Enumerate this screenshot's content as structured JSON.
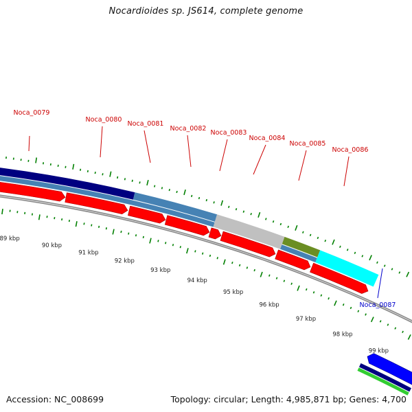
{
  "title": "Nocardioides sp. JS614, complete genome",
  "footer": {
    "accession": "Accession: NC_008699",
    "topology": "Topology: circular; Length: 4,985,871 bp; Genes: 4,700"
  },
  "colors": {
    "forward_gene": "#ff0000",
    "reverse_gene": "#0000ff",
    "tick": "#008000",
    "gene_label_forward": "#cc0000",
    "gene_label_reverse": "#0000cc",
    "backbone": "#888888",
    "navy": "#000080",
    "steelblue": "#4682b4",
    "silver": "#c0c0c0",
    "olive": "#6b8e23",
    "cyan": "#00ffff",
    "green": "#32cd32"
  },
  "kbp_labels": [
    "89 kbp",
    "90 kbp",
    "91 kbp",
    "92 kbp",
    "93 kbp",
    "94 kbp",
    "95 kbp",
    "96 kbp",
    "97 kbp",
    "98 kbp",
    "99 kbp"
  ],
  "gene_labels": [
    {
      "name": "Noca_0079",
      "strand": "forward"
    },
    {
      "name": "Noca_0080",
      "strand": "forward"
    },
    {
      "name": "Noca_0081",
      "strand": "forward"
    },
    {
      "name": "Noca_0082",
      "strand": "forward"
    },
    {
      "name": "Noca_0083",
      "strand": "forward"
    },
    {
      "name": "Noca_0084",
      "strand": "forward"
    },
    {
      "name": "Noca_0085",
      "strand": "forward"
    },
    {
      "name": "Noca_0086",
      "strand": "forward"
    },
    {
      "name": "Noca_0087",
      "strand": "reverse"
    }
  ],
  "icons": {
    "forward_gene": "arrow-right-icon",
    "reverse_gene": "arrow-left-icon"
  }
}
